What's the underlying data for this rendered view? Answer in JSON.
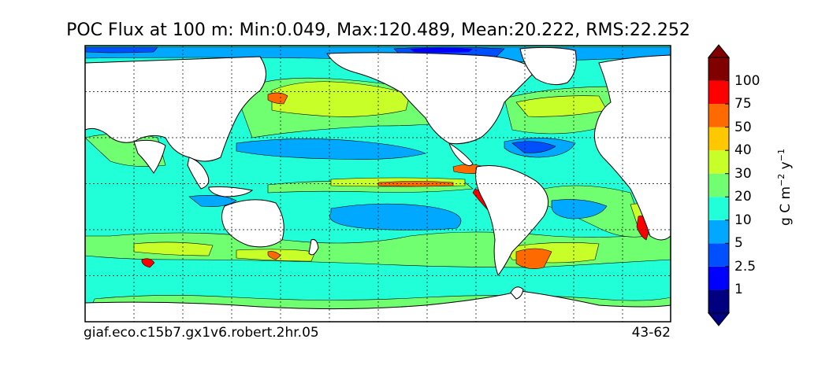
{
  "title": "POC Flux at 100 m: Min:0.049, Max:120.489, Mean:20.222, RMS:22.252",
  "footer": {
    "case_name": "giaf.eco.c15b7.gx1v6.robert.2hr.05",
    "years": "43-62"
  },
  "colorbar": {
    "units_base": "g C m",
    "units_exp1": "−2",
    "units_mid": " y",
    "units_exp2": "−1",
    "ticks": [
      "1",
      "2.5",
      "5",
      "10",
      "20",
      "30",
      "40",
      "50",
      "75",
      "100"
    ],
    "colors": [
      "#000080",
      "#0000ff",
      "#0050ff",
      "#00a8ff",
      "#20ffd8",
      "#70ff70",
      "#c8ff28",
      "#ffc800",
      "#ff6a00",
      "#ff0000",
      "#800000"
    ]
  },
  "map": {
    "ocean_color": "#20ffd8",
    "land_color": "#ffffff",
    "projection": "cylindrical equidistant",
    "gridlines": "dashed"
  }
}
